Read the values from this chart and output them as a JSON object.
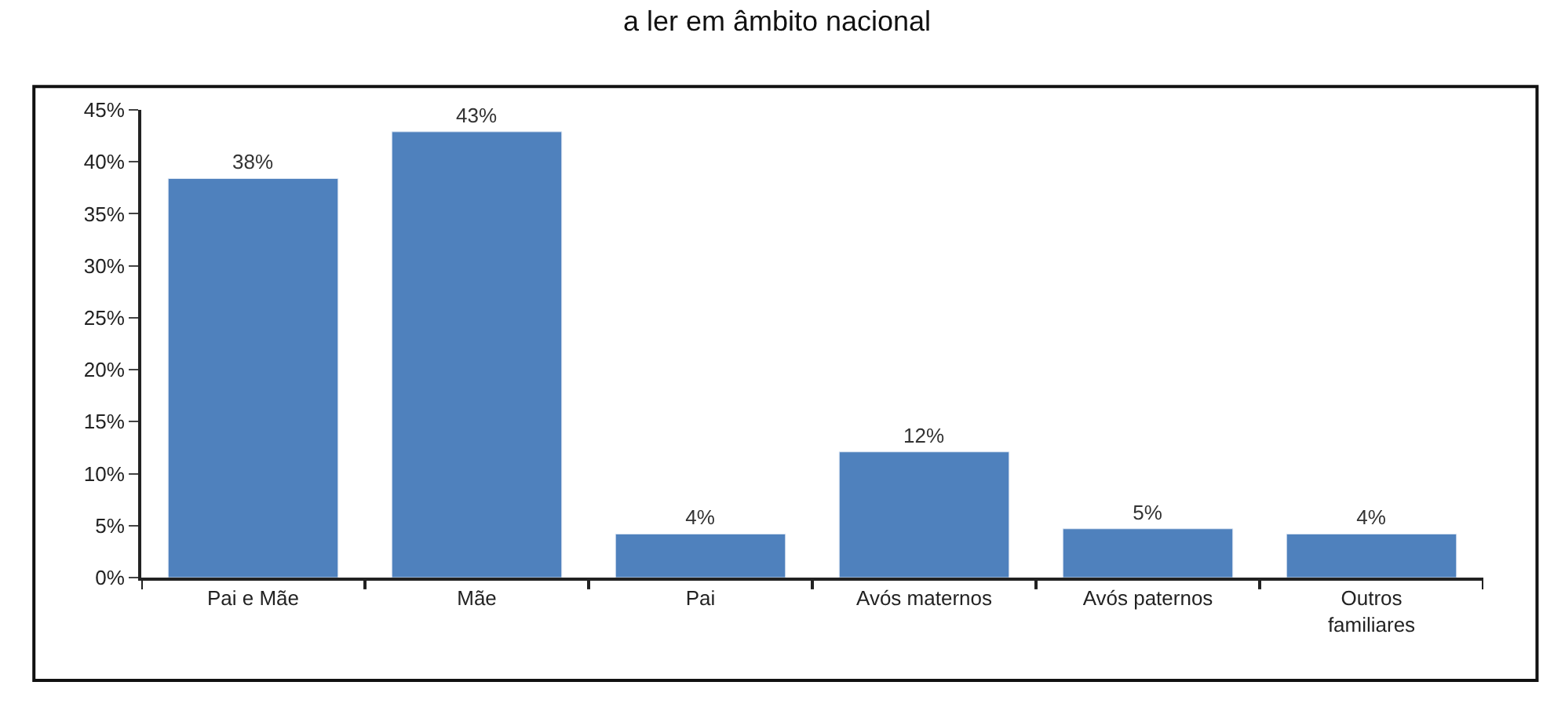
{
  "chart_data": {
    "type": "bar",
    "title": "a ler em âmbito nacional",
    "categories": [
      "Pai e Mãe",
      "Mãe",
      "Pai",
      "Avós maternos",
      "Avós paternos",
      "Outros familiares"
    ],
    "values": [
      38.4,
      42.9,
      4.2,
      12.1,
      4.7,
      4.2
    ],
    "value_labels": [
      "38%",
      "43%",
      "4%",
      "12%",
      "5%",
      "4%"
    ],
    "color": "#4f81bd",
    "ylim": [
      0,
      45
    ],
    "yticks": [
      {
        "value": 0,
        "label": "0%"
      },
      {
        "value": 5,
        "label": "5%"
      },
      {
        "value": 10,
        "label": "10%"
      },
      {
        "value": 15,
        "label": "15%"
      },
      {
        "value": 20,
        "label": "20%"
      },
      {
        "value": 25,
        "label": "25%"
      },
      {
        "value": 30,
        "label": "30%"
      },
      {
        "value": 35,
        "label": "35%"
      },
      {
        "value": 40,
        "label": "40%"
      },
      {
        "value": 45,
        "label": "45%"
      }
    ]
  }
}
